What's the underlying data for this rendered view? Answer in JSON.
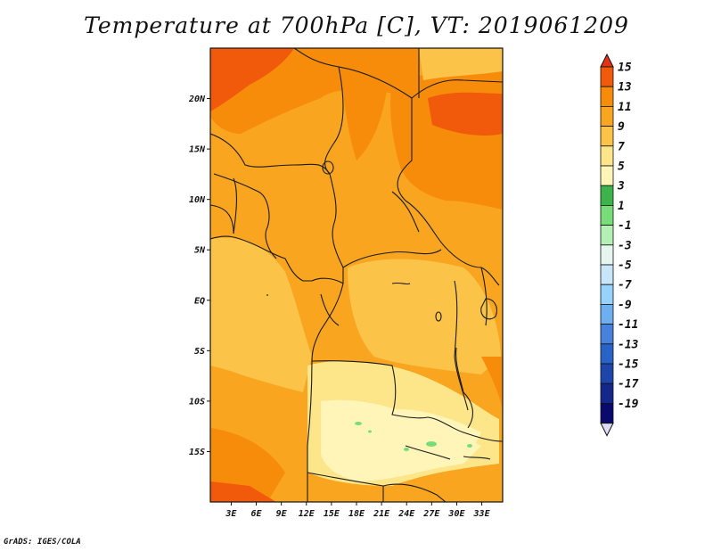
{
  "title": "Temperature at 700hPa [C], VT: 2019061209",
  "credit": "GrADS: IGES/COLA",
  "map": {
    "lon_ticks": [
      "3E",
      "6E",
      "9E",
      "12E",
      "15E",
      "18E",
      "21E",
      "24E",
      "27E",
      "30E",
      "33E"
    ],
    "lon_values": [
      3,
      6,
      9,
      12,
      15,
      18,
      21,
      24,
      27,
      30,
      33
    ],
    "lat_ticks": [
      "20N",
      "15N",
      "10N",
      "5N",
      "EQ",
      "5S",
      "10S",
      "15S"
    ],
    "lat_values": [
      20,
      15,
      10,
      5,
      0,
      -5,
      -10,
      -15
    ],
    "lon_range": [
      0.5,
      35.5
    ],
    "lat_range": [
      -20,
      25
    ]
  },
  "legend": {
    "labels": [
      "15",
      "13",
      "11",
      "9",
      "7",
      "5",
      "3",
      "1",
      "-1",
      "-3",
      "-5",
      "-7",
      "-9",
      "-11",
      "-13",
      "-15",
      "-17",
      "-19"
    ],
    "colors": [
      "#e63214",
      "#f05a0a",
      "#f78c0a",
      "#f9a520",
      "#fbc348",
      "#fde68a",
      "#fff5b8",
      "#3cb44b",
      "#78dc78",
      "#b4f0b4",
      "#e6f5f0",
      "#c8e6fa",
      "#96d2fa",
      "#6eaff0",
      "#4682dc",
      "#2864c8",
      "#1e46aa",
      "#14288c",
      "#0a0a6e",
      "#dcdcfa"
    ]
  },
  "chart_data": {
    "type": "heatmap",
    "title": "Temperature at 700hPa [C], VT: 2019061209",
    "xlabel": "",
    "ylabel": "",
    "xlim": [
      0.5,
      35.5
    ],
    "ylim": [
      -20,
      25
    ],
    "x_ticks": [
      "3E",
      "6E",
      "9E",
      "12E",
      "15E",
      "18E",
      "21E",
      "24E",
      "27E",
      "30E",
      "33E"
    ],
    "y_ticks": [
      "20N",
      "15N",
      "10N",
      "5N",
      "EQ",
      "5S",
      "10S",
      "15S"
    ],
    "colorbar_levels": [
      15,
      13,
      11,
      9,
      7,
      5,
      3,
      1,
      -1,
      -3,
      -5,
      -7,
      -9,
      -11,
      -13,
      -15,
      -17,
      -19
    ]
  }
}
